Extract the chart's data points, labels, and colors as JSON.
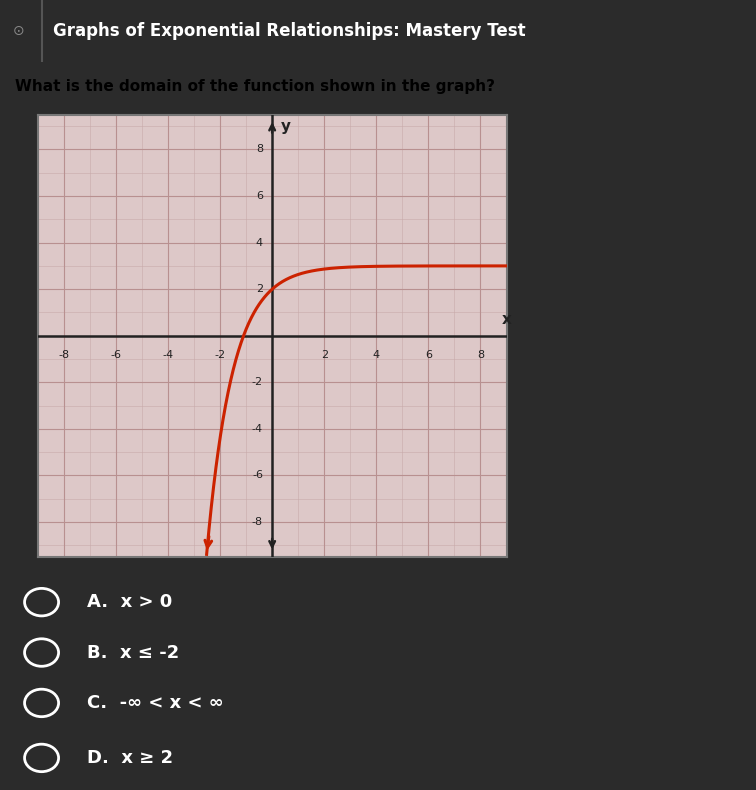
{
  "header_bg": "#23272e",
  "header_text": "Graphs of Exponential Relationships: Mastery Test",
  "header_text_color": "#ffffff",
  "question_text": "What is the domain of the function shown in the graph?",
  "question_text_color": "#000000",
  "body_bg": "#2b2b2b",
  "graph_bg_color": "#ddc8c8",
  "graph_grid_minor_color": "#c8aaaa",
  "graph_grid_major_color": "#b89090",
  "axis_color": "#222222",
  "curve_color": "#cc2200",
  "xlim": [
    -9,
    9
  ],
  "ylim": [
    -9.5,
    9.5
  ],
  "xticks": [
    -8,
    -6,
    -4,
    -2,
    2,
    4,
    6,
    8
  ],
  "yticks": [
    -8,
    -6,
    -4,
    -2,
    2,
    4,
    6,
    8
  ],
  "options": [
    "A.  x > 0",
    "B.  x ≤ -2",
    "C.  -∞ < x < ∞",
    "D.  x ≥ 2"
  ],
  "option_color": "#ffffff",
  "question_bg": "#d4d0c8"
}
